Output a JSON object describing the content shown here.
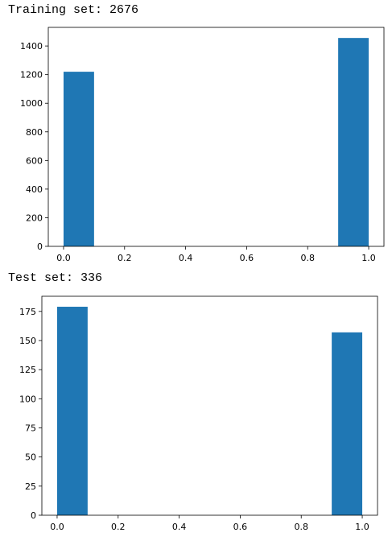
{
  "outputs": [
    {
      "caption": "Training set: 2676",
      "chart_data": {
        "type": "bar",
        "x": [
          0.05,
          0.95
        ],
        "bin_width": 0.1,
        "values": [
          1220,
          1456
        ],
        "xlim": [
          -0.05,
          1.05
        ],
        "ylim": [
          0,
          1530
        ],
        "xticks": [
          0.0,
          0.2,
          0.4,
          0.6,
          0.8,
          1.0
        ],
        "xtick_labels": [
          "0.0",
          "0.2",
          "0.4",
          "0.6",
          "0.8",
          "1.0"
        ],
        "yticks": [
          0,
          200,
          400,
          600,
          800,
          1000,
          1200,
          1400
        ],
        "ytick_labels": [
          "0",
          "200",
          "400",
          "600",
          "800",
          "1000",
          "1200",
          "1400"
        ],
        "grid": false,
        "bar_color": "#1f77b4"
      }
    },
    {
      "caption": "Test set: 336",
      "chart_data": {
        "type": "bar",
        "x": [
          0.05,
          0.95
        ],
        "bin_width": 0.1,
        "values": [
          179,
          157
        ],
        "xlim": [
          -0.05,
          1.05
        ],
        "ylim": [
          0,
          188
        ],
        "xticks": [
          0.0,
          0.2,
          0.4,
          0.6,
          0.8,
          1.0
        ],
        "xtick_labels": [
          "0.0",
          "0.2",
          "0.4",
          "0.6",
          "0.8",
          "1.0"
        ],
        "yticks": [
          0,
          25,
          50,
          75,
          100,
          125,
          150,
          175
        ],
        "ytick_labels": [
          "0",
          "25",
          "50",
          "75",
          "100",
          "125",
          "150",
          "175"
        ],
        "grid": false,
        "bar_color": "#1f77b4"
      }
    }
  ]
}
